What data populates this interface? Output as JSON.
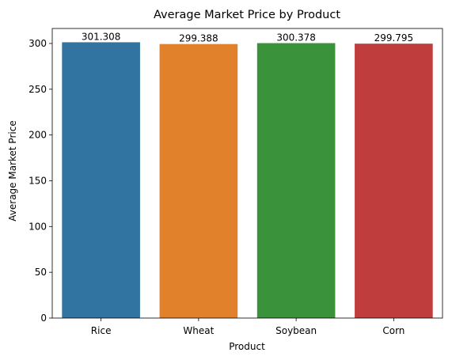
{
  "chart_data": {
    "type": "bar",
    "title": "Average Market Price by Product",
    "xlabel": "Product",
    "ylabel": "Average Market Price",
    "categories": [
      "Rice",
      "Wheat",
      "Soybean",
      "Corn"
    ],
    "values": [
      301.308,
      299.388,
      300.378,
      299.795
    ],
    "data_labels": [
      "301.308",
      "299.388",
      "300.378",
      "299.795"
    ],
    "colors": [
      "#3274a1",
      "#e1812c",
      "#3a923a",
      "#c03d3e"
    ],
    "ylim": [
      0,
      316.37
    ],
    "yticks": [
      0,
      50,
      100,
      150,
      200,
      250,
      300
    ],
    "grid": false,
    "legend": "none"
  }
}
